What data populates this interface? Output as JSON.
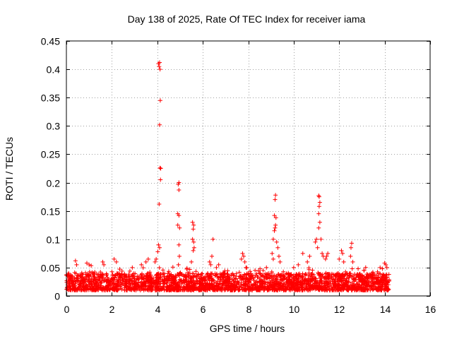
{
  "chart_data": {
    "type": "scatter",
    "title": "Day 138 of 2025, Rate Of TEC Index for receiver iama",
    "xlabel": "GPS time / hours",
    "ylabel": "ROTI / TECUs",
    "xlim": [
      0,
      16
    ],
    "ylim": [
      0,
      0.45
    ],
    "xticks": [
      0,
      2,
      4,
      6,
      8,
      10,
      12,
      14,
      16
    ],
    "yticks": [
      0,
      0.05,
      0.1,
      0.15,
      0.2,
      0.25,
      0.3,
      0.35,
      0.4,
      0.45
    ],
    "xtick_labels": [
      "0",
      "2",
      "4",
      "6",
      "8",
      "10",
      "12",
      "14",
      "16"
    ],
    "ytick_labels": [
      "0",
      "0.05",
      "0.1",
      "0.15",
      "0.2",
      "0.25",
      "0.3",
      "0.35",
      "0.4",
      "0.45"
    ],
    "grid": true,
    "marker": "+",
    "color": "#ff0000",
    "data_range_hours": [
      0,
      14.2
    ],
    "baseline_range": [
      0.01,
      0.04
    ],
    "series": [
      {
        "name": "ROTI",
        "points": [
          [
            4.05,
            0.41
          ],
          [
            4.08,
            0.405
          ],
          [
            4.1,
            0.412
          ],
          [
            4.12,
            0.4
          ],
          [
            4.13,
            0.345
          ],
          [
            4.1,
            0.302
          ],
          [
            4.12,
            0.226
          ],
          [
            4.15,
            0.225
          ],
          [
            4.14,
            0.205
          ],
          [
            4.08,
            0.162
          ],
          [
            4.05,
            0.09
          ],
          [
            4.1,
            0.085
          ],
          [
            4.02,
            0.078
          ],
          [
            3.95,
            0.065
          ],
          [
            3.9,
            0.06
          ],
          [
            4.95,
            0.2
          ],
          [
            4.92,
            0.197
          ],
          [
            4.95,
            0.187
          ],
          [
            4.9,
            0.145
          ],
          [
            4.95,
            0.142
          ],
          [
            4.9,
            0.125
          ],
          [
            4.98,
            0.12
          ],
          [
            4.95,
            0.09
          ],
          [
            4.97,
            0.07
          ],
          [
            4.93,
            0.055
          ],
          [
            5.55,
            0.13
          ],
          [
            5.6,
            0.125
          ],
          [
            5.58,
            0.118
          ],
          [
            5.55,
            0.1
          ],
          [
            5.6,
            0.095
          ],
          [
            5.62,
            0.085
          ],
          [
            5.58,
            0.08
          ],
          [
            5.5,
            0.06
          ],
          [
            6.45,
            0.1
          ],
          [
            6.4,
            0.07
          ],
          [
            6.3,
            0.06
          ],
          [
            6.35,
            0.055
          ],
          [
            7.75,
            0.075
          ],
          [
            7.8,
            0.07
          ],
          [
            7.7,
            0.065
          ],
          [
            7.85,
            0.06
          ],
          [
            7.9,
            0.05
          ],
          [
            9.2,
            0.178
          ],
          [
            9.18,
            0.17
          ],
          [
            9.15,
            0.142
          ],
          [
            9.22,
            0.138
          ],
          [
            9.2,
            0.125
          ],
          [
            9.18,
            0.12
          ],
          [
            9.15,
            0.115
          ],
          [
            9.1,
            0.1
          ],
          [
            9.25,
            0.095
          ],
          [
            9.3,
            0.085
          ],
          [
            9.05,
            0.075
          ],
          [
            9.35,
            0.07
          ],
          [
            9.1,
            0.065
          ],
          [
            9.4,
            0.06
          ],
          [
            10.4,
            0.075
          ],
          [
            10.2,
            0.055
          ],
          [
            10.6,
            0.06
          ],
          [
            10.7,
            0.07
          ],
          [
            11.0,
            0.1
          ],
          [
            10.95,
            0.095
          ],
          [
            11.1,
            0.177
          ],
          [
            11.12,
            0.175
          ],
          [
            11.15,
            0.165
          ],
          [
            11.12,
            0.158
          ],
          [
            11.1,
            0.145
          ],
          [
            11.15,
            0.13
          ],
          [
            11.1,
            0.12
          ],
          [
            11.2,
            0.1
          ],
          [
            11.25,
            0.075
          ],
          [
            11.05,
            0.085
          ],
          [
            11.3,
            0.07
          ],
          [
            11.4,
            0.065
          ],
          [
            11.5,
            0.075
          ],
          [
            11.45,
            0.07
          ],
          [
            12.1,
            0.08
          ],
          [
            12.15,
            0.075
          ],
          [
            12.0,
            0.065
          ],
          [
            12.2,
            0.06
          ],
          [
            12.55,
            0.093
          ],
          [
            12.52,
            0.085
          ],
          [
            12.5,
            0.07
          ],
          [
            12.6,
            0.06
          ],
          [
            13.8,
            0.05
          ],
          [
            13.9,
            0.048
          ],
          [
            14.0,
            0.058
          ],
          [
            14.05,
            0.055
          ],
          [
            14.1,
            0.05
          ],
          [
            0.05,
            0.035
          ],
          [
            0.1,
            0.04
          ],
          [
            0.4,
            0.062
          ],
          [
            0.45,
            0.055
          ],
          [
            0.9,
            0.058
          ],
          [
            1.0,
            0.055
          ],
          [
            1.6,
            0.06
          ],
          [
            1.65,
            0.055
          ],
          [
            2.1,
            0.065
          ],
          [
            2.2,
            0.06
          ],
          [
            2.9,
            0.05
          ],
          [
            3.3,
            0.055
          ],
          [
            3.5,
            0.06
          ],
          [
            3.6,
            0.065
          ],
          [
            6.6,
            0.05
          ],
          [
            6.7,
            0.055
          ],
          [
            8.3,
            0.045
          ],
          [
            8.8,
            0.05
          ],
          [
            10.0,
            0.05
          ],
          [
            13.1,
            0.045
          ]
        ]
      }
    ],
    "seed": 138
  }
}
